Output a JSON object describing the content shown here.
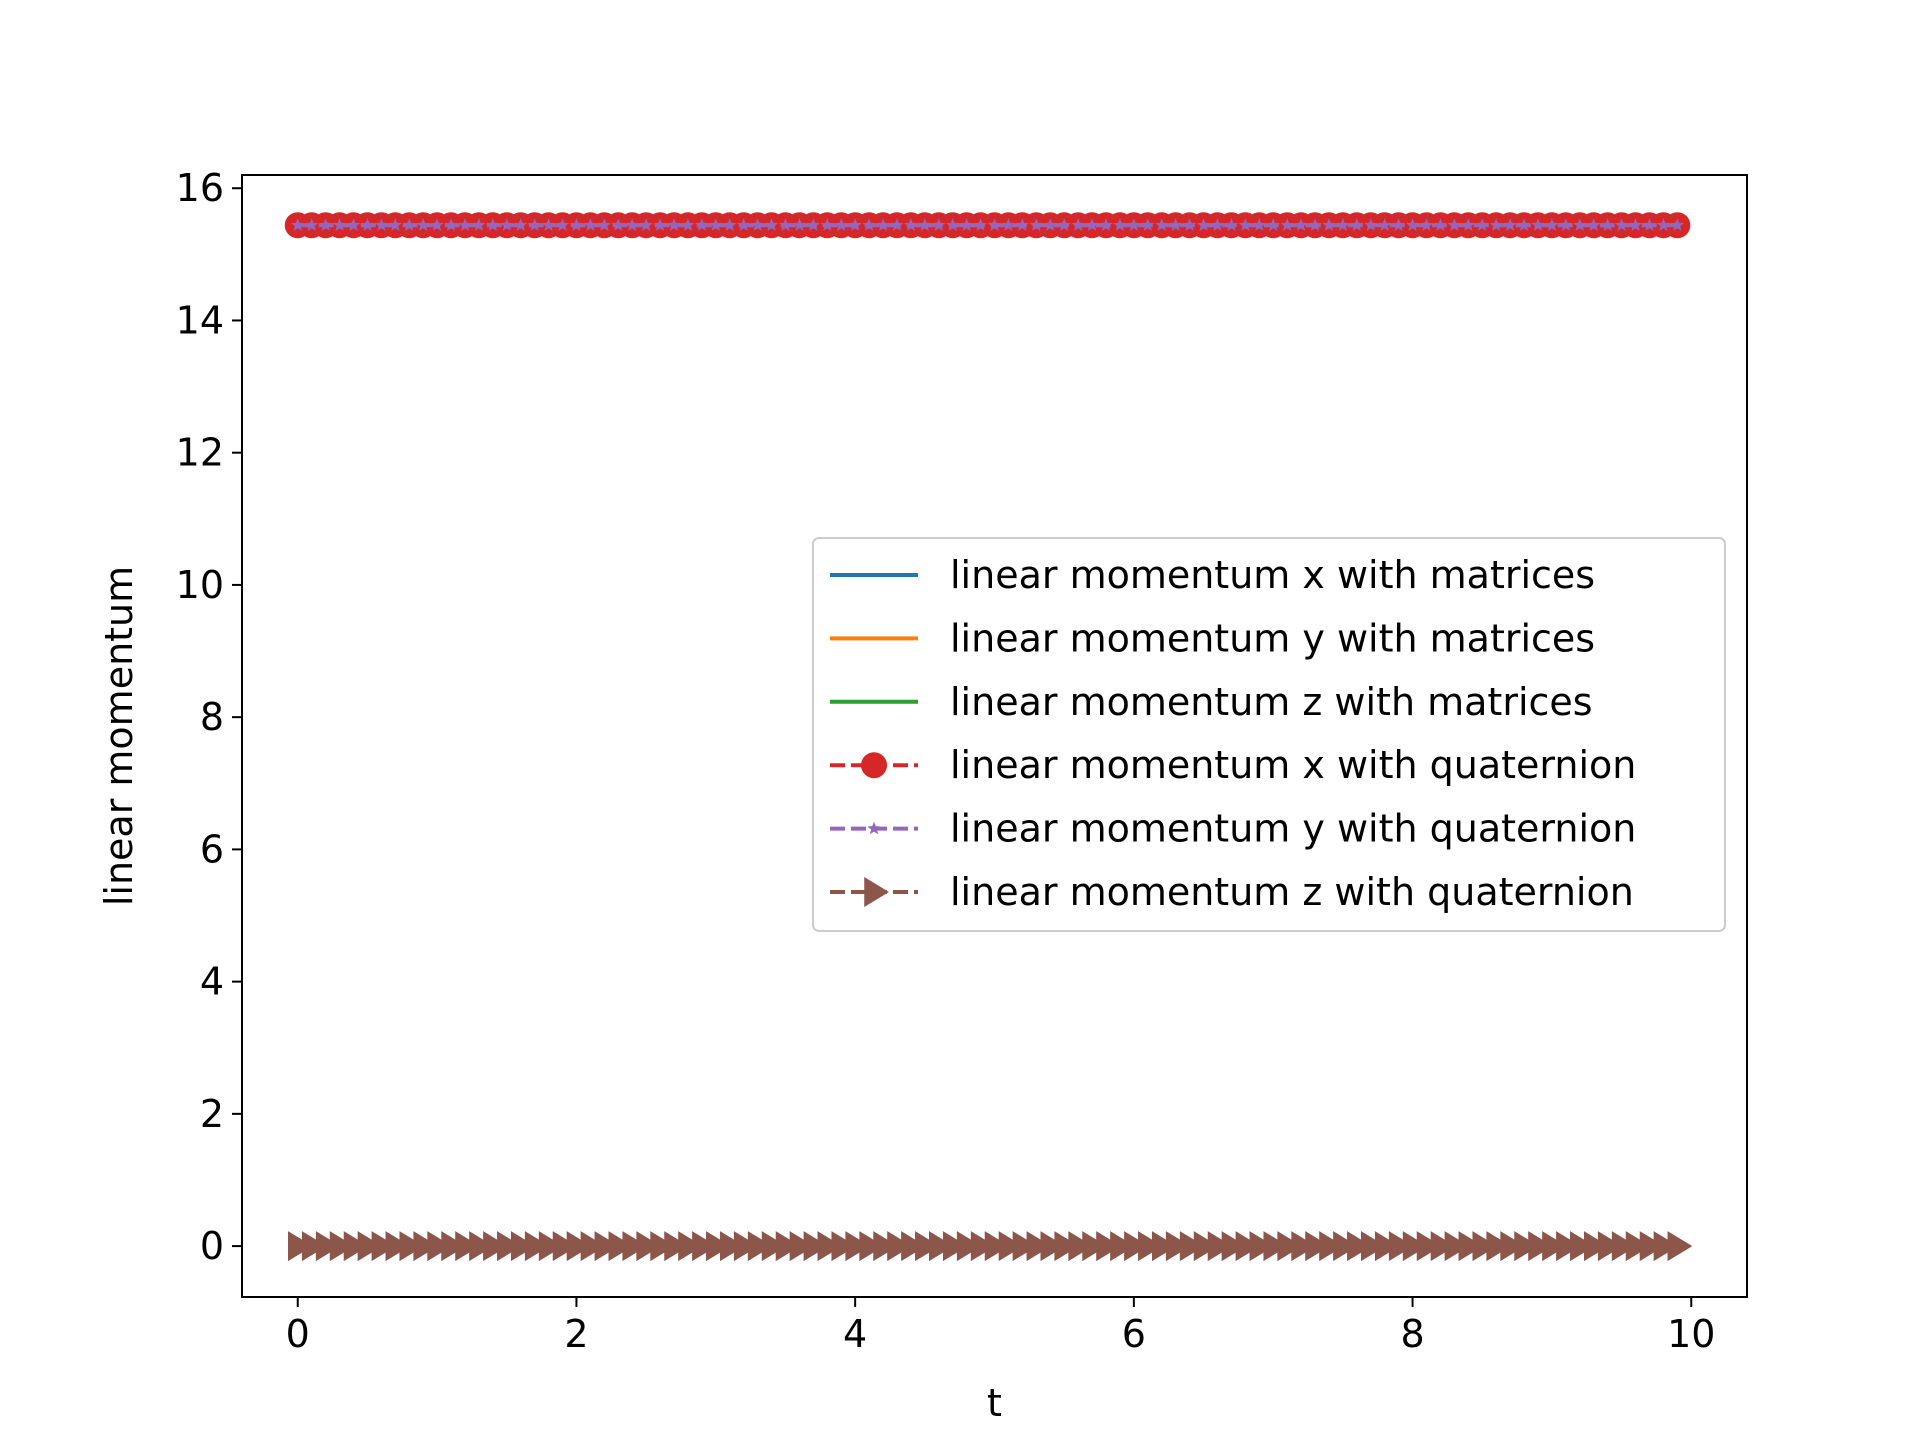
{
  "chart_data": {
    "type": "line",
    "xlabel": "t",
    "ylabel": "linear momentum",
    "xlim": [
      -0.4,
      10.4
    ],
    "ylim": [
      -0.77,
      16.2
    ],
    "grid": false,
    "legend_position": "center-right",
    "x_ticks": [
      0,
      2,
      4,
      6,
      8,
      10
    ],
    "y_ticks": [
      0,
      2,
      4,
      6,
      8,
      10,
      12,
      14,
      16
    ],
    "x": {
      "start": 0.0,
      "stop": 9.9,
      "step": 0.1
    },
    "series": [
      {
        "name": "linear momentum x with matrices",
        "color": "#1f77b4",
        "style": "solid",
        "marker": "none",
        "y_constant": 15.44
      },
      {
        "name": "linear momentum y with matrices",
        "color": "#ff7f0e",
        "style": "solid",
        "marker": "none",
        "y_constant": 15.44
      },
      {
        "name": "linear momentum z with matrices",
        "color": "#2ca02c",
        "style": "solid",
        "marker": "none",
        "y_constant": 0
      },
      {
        "name": "linear momentum x with quaternion",
        "color": "#d62728",
        "style": "dashed",
        "marker": "circle",
        "y_constant": 15.44
      },
      {
        "name": "linear momentum y with quaternion",
        "color": "#9467bd",
        "style": "dashed",
        "marker": "star",
        "y_constant": 15.44
      },
      {
        "name": "linear momentum z with quaternion",
        "color": "#8c564b",
        "style": "dashed",
        "marker": "triangle-right",
        "y_constant": 0
      }
    ]
  }
}
